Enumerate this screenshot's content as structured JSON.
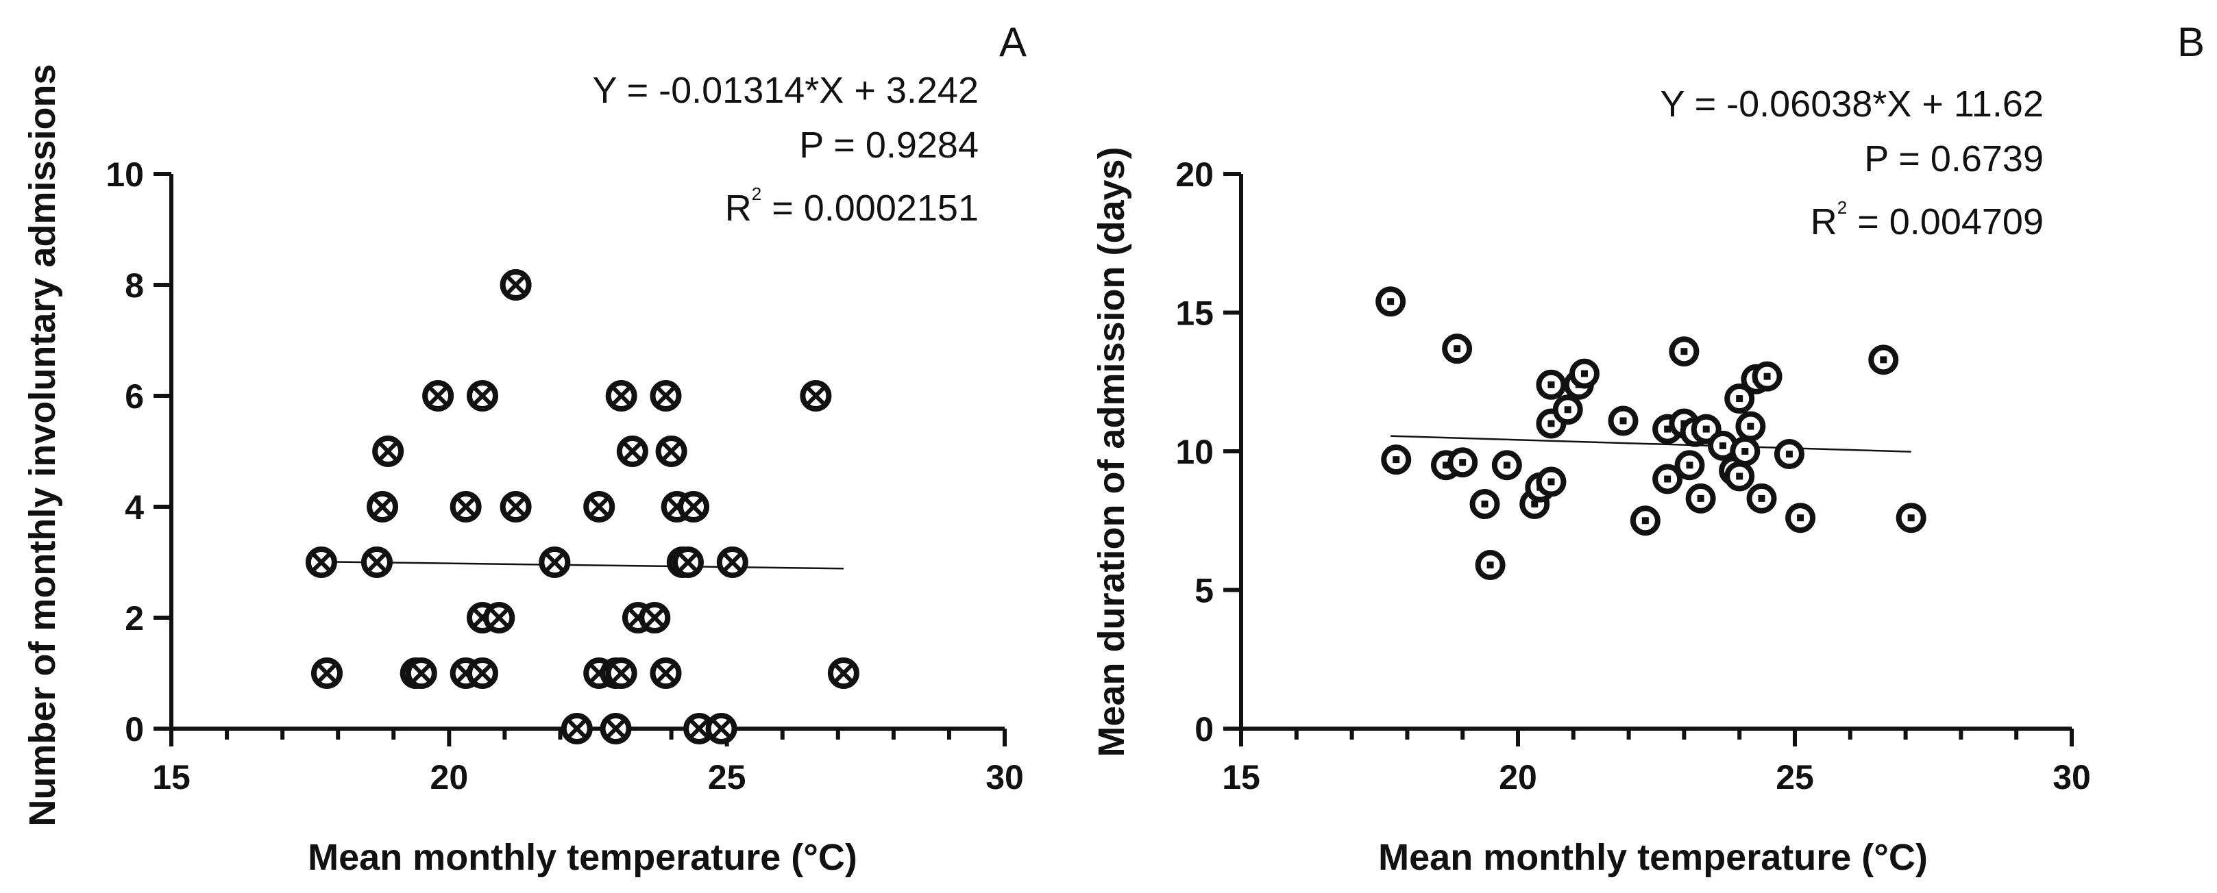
{
  "chart_data": [
    {
      "type": "scatter",
      "panel": "A",
      "xlabel": "Mean monthly temperature (°C)",
      "ylabel": "Number of monthly involuntary admissions",
      "xlim": [
        15,
        30
      ],
      "ylim": [
        0,
        10
      ],
      "xticks": [
        "15",
        "20",
        "25",
        "30"
      ],
      "yticks": [
        "0",
        "2",
        "4",
        "6",
        "8",
        "10"
      ],
      "marker": "circle-x",
      "equation": "Y = -0.01314*X + 3.242",
      "p_value": "P = 0.9284",
      "r_squared_label": "R",
      "r_squared_sup": "2",
      "r_squared_value": " = 0.0002151",
      "regression": {
        "slope": -0.01314,
        "intercept": 3.242,
        "x_range": [
          17.7,
          27.1
        ]
      },
      "points": [
        [
          17.7,
          3
        ],
        [
          17.8,
          1
        ],
        [
          18.7,
          3
        ],
        [
          18.8,
          4
        ],
        [
          18.9,
          5
        ],
        [
          19.4,
          1
        ],
        [
          19.5,
          1
        ],
        [
          19.8,
          6
        ],
        [
          20.3,
          4
        ],
        [
          20.3,
          1
        ],
        [
          20.6,
          6
        ],
        [
          20.6,
          1
        ],
        [
          20.6,
          2
        ],
        [
          20.9,
          2
        ],
        [
          21.2,
          8
        ],
        [
          21.2,
          4
        ],
        [
          21.9,
          3
        ],
        [
          22.3,
          0
        ],
        [
          22.7,
          4
        ],
        [
          22.7,
          1
        ],
        [
          23.0,
          1
        ],
        [
          23.0,
          0
        ],
        [
          23.1,
          1
        ],
        [
          23.1,
          6
        ],
        [
          23.3,
          5
        ],
        [
          23.4,
          2
        ],
        [
          23.7,
          2
        ],
        [
          23.9,
          6
        ],
        [
          23.9,
          1
        ],
        [
          24.0,
          5
        ],
        [
          24.1,
          4
        ],
        [
          24.2,
          3
        ],
        [
          24.3,
          3
        ],
        [
          24.4,
          4
        ],
        [
          24.5,
          0
        ],
        [
          24.9,
          0
        ],
        [
          25.1,
          3
        ],
        [
          26.6,
          6
        ],
        [
          27.1,
          1
        ]
      ]
    },
    {
      "type": "scatter",
      "panel": "B",
      "xlabel": "Mean monthly temperature (°C)",
      "ylabel": "Mean duration of admission (days)",
      "xlim": [
        15,
        30
      ],
      "ylim": [
        0,
        20
      ],
      "xticks": [
        "15",
        "20",
        "25",
        "30"
      ],
      "yticks": [
        "0",
        "5",
        "10",
        "15",
        "20"
      ],
      "marker": "circle-dot",
      "equation": "Y = -0.06038*X + 11.62",
      "p_value": "P = 0.6739",
      "r_squared_label": "R",
      "r_squared_sup": "2",
      "r_squared_value": " = 0.004709",
      "regression": {
        "slope": -0.06038,
        "intercept": 11.62,
        "x_range": [
          17.7,
          27.1
        ]
      },
      "points": [
        [
          17.7,
          15.4
        ],
        [
          17.8,
          9.7
        ],
        [
          18.7,
          9.5
        ],
        [
          18.9,
          13.7
        ],
        [
          19.0,
          9.6
        ],
        [
          19.4,
          8.1
        ],
        [
          19.5,
          5.9
        ],
        [
          19.8,
          9.5
        ],
        [
          20.3,
          8.1
        ],
        [
          20.4,
          8.7
        ],
        [
          20.6,
          8.9
        ],
        [
          20.6,
          11.0
        ],
        [
          20.6,
          12.4
        ],
        [
          20.9,
          11.5
        ],
        [
          21.1,
          12.4
        ],
        [
          21.2,
          12.8
        ],
        [
          21.9,
          11.1
        ],
        [
          22.3,
          7.5
        ],
        [
          22.7,
          9.0
        ],
        [
          22.7,
          10.8
        ],
        [
          23.0,
          13.6
        ],
        [
          23.0,
          11.0
        ],
        [
          23.1,
          9.5
        ],
        [
          23.2,
          10.7
        ],
        [
          23.3,
          8.3
        ],
        [
          23.4,
          10.8
        ],
        [
          23.7,
          10.2
        ],
        [
          23.9,
          9.3
        ],
        [
          24.0,
          11.9
        ],
        [
          24.0,
          9.1
        ],
        [
          24.1,
          10.0
        ],
        [
          24.2,
          10.9
        ],
        [
          24.3,
          12.6
        ],
        [
          24.4,
          8.3
        ],
        [
          24.5,
          12.7
        ],
        [
          24.9,
          9.9
        ],
        [
          25.1,
          7.6
        ],
        [
          26.6,
          13.3
        ],
        [
          27.1,
          7.6
        ]
      ]
    }
  ]
}
